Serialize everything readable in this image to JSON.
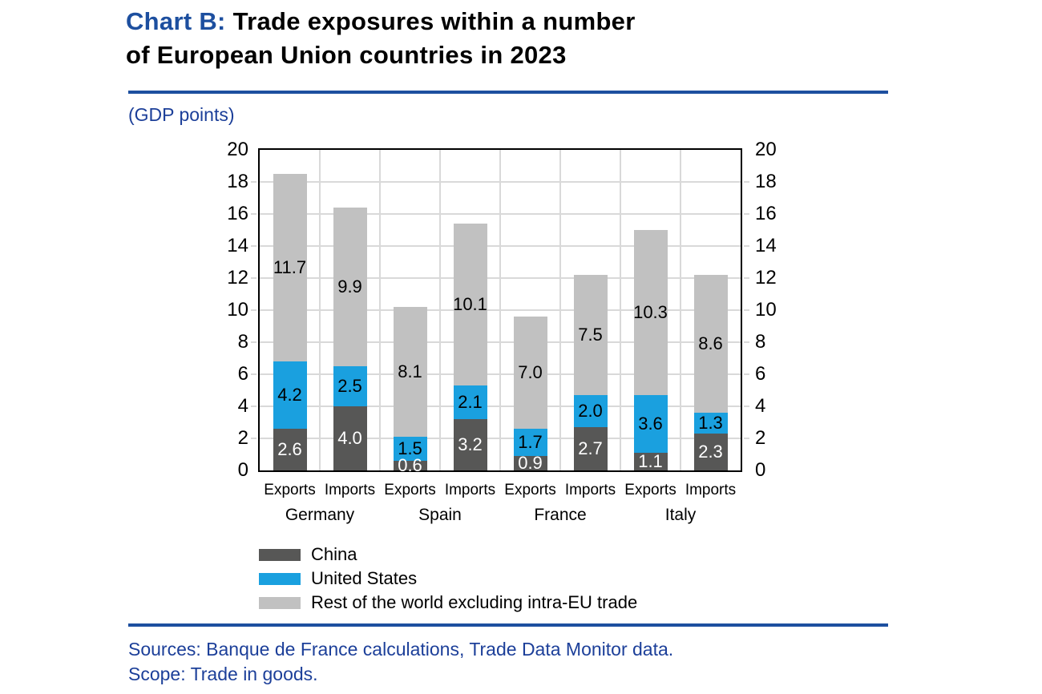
{
  "title": {
    "prefix": "Chart B:",
    "line1_rest": " Trade exposures within a number",
    "line2": "of European Union countries in 2023"
  },
  "subtitle": "(GDP points)",
  "footer": {
    "sources": "Sources: Banque de France calculations, Trade Data Monitor data.",
    "scope": "Scope: Trade in goods."
  },
  "colors": {
    "title_blue": "#1d4f9f",
    "text_blue": "#1c3f99",
    "rule_blue": "#1d4f9f",
    "china": "#575756",
    "united_states": "#1aa0df",
    "rest_of_world": "#c1c1c1",
    "gridline": "#d9d9d9",
    "plot_border": "#000000",
    "value_label_on_dark": "#ffffff",
    "value_label_on_light": "#000000"
  },
  "legend": [
    {
      "key": "china",
      "label": "China"
    },
    {
      "key": "united_states",
      "label": "United States"
    },
    {
      "key": "rest_of_world",
      "label": "Rest of the world excluding intra-EU trade"
    }
  ],
  "chart_data": {
    "type": "bar",
    "stacked": true,
    "title": "Chart B: Trade exposures within a number of European Union countries in 2023",
    "unit_label": "(GDP points)",
    "ylim": [
      0,
      20
    ],
    "ytick_step": 2,
    "grid": true,
    "legend_position": "bottom-left",
    "series_order": [
      "china",
      "united_states",
      "rest_of_world"
    ],
    "series_labels": {
      "china": "China",
      "united_states": "United States",
      "rest_of_world": "Rest of the world excluding intra-EU trade"
    },
    "groups": [
      {
        "country": "Germany",
        "bars": [
          {
            "flow": "Exports",
            "values": {
              "china": 2.6,
              "united_states": 4.2,
              "rest_of_world": 11.7
            }
          },
          {
            "flow": "Imports",
            "values": {
              "china": 4.0,
              "united_states": 2.5,
              "rest_of_world": 9.9
            }
          }
        ]
      },
      {
        "country": "Spain",
        "bars": [
          {
            "flow": "Exports",
            "values": {
              "china": 0.6,
              "united_states": 1.5,
              "rest_of_world": 8.1
            }
          },
          {
            "flow": "Imports",
            "values": {
              "china": 3.2,
              "united_states": 2.1,
              "rest_of_world": 10.1
            }
          }
        ]
      },
      {
        "country": "France",
        "bars": [
          {
            "flow": "Exports",
            "values": {
              "china": 0.9,
              "united_states": 1.7,
              "rest_of_world": 7.0
            }
          },
          {
            "flow": "Imports",
            "values": {
              "china": 2.7,
              "united_states": 2.0,
              "rest_of_world": 7.5
            }
          }
        ]
      },
      {
        "country": "Italy",
        "bars": [
          {
            "flow": "Exports",
            "values": {
              "china": 1.1,
              "united_states": 3.6,
              "rest_of_world": 10.3
            }
          },
          {
            "flow": "Imports",
            "values": {
              "china": 2.3,
              "united_states": 1.3,
              "rest_of_world": 8.6
            }
          }
        ]
      }
    ]
  }
}
